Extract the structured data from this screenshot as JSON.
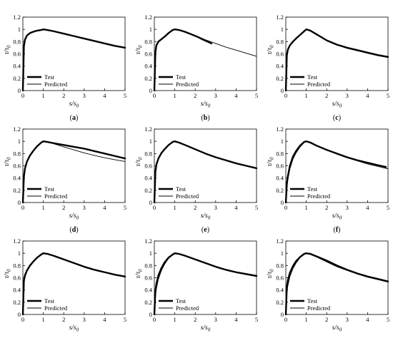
{
  "figure": {
    "panel_letters": [
      "(a)",
      "(b)",
      "(c)",
      "(d)",
      "(e)",
      "(f)",
      "(g)",
      "(h)",
      "(i)"
    ]
  },
  "chart_data": [
    {
      "type": "line",
      "panel": "(a)",
      "ylabel": "τ/τ0",
      "xlabel": "s/s0",
      "xlim": [
        0,
        5
      ],
      "ylim": [
        0,
        1.2
      ],
      "xticks": [
        "0",
        "1",
        "2",
        "3",
        "4",
        "5"
      ],
      "yticks": [
        "0",
        "0.2",
        "0.4",
        "0.6",
        "0.8",
        "1",
        "1.2"
      ],
      "legend": {
        "position": "bottom-left",
        "entries": [
          "Test",
          "Predicted"
        ]
      },
      "grid": false,
      "series": [
        {
          "name": "Test",
          "style": "thick",
          "x": [
            0,
            0.05,
            0.1,
            0.2,
            0.35,
            0.5,
            0.7,
            0.9,
            1.0,
            1.2,
            1.5,
            2.0,
            2.5,
            3.0,
            3.5,
            4.0,
            4.5,
            5.0
          ],
          "y": [
            0,
            0.72,
            0.83,
            0.9,
            0.94,
            0.96,
            0.98,
            0.99,
            1.0,
            0.99,
            0.97,
            0.93,
            0.89,
            0.85,
            0.81,
            0.77,
            0.73,
            0.7
          ]
        },
        {
          "name": "Predicted",
          "style": "thin",
          "x": [
            0,
            0.05,
            0.1,
            0.2,
            0.35,
            0.5,
            0.7,
            0.9,
            1.0,
            1.2,
            1.5,
            2.0,
            2.5,
            3.0,
            3.5,
            4.0,
            4.5,
            5.0
          ],
          "y": [
            0,
            0.7,
            0.81,
            0.89,
            0.93,
            0.955,
            0.975,
            0.99,
            1.0,
            0.99,
            0.97,
            0.93,
            0.89,
            0.85,
            0.81,
            0.77,
            0.73,
            0.7
          ]
        }
      ]
    },
    {
      "type": "line",
      "panel": "(b)",
      "ylabel": "τ/τ0",
      "xlabel": "s/s0",
      "xlim": [
        0,
        5
      ],
      "ylim": [
        0,
        1.2
      ],
      "xticks": [
        "0",
        "1",
        "2",
        "3",
        "4",
        "5"
      ],
      "yticks": [
        "0",
        "0.2",
        "0.4",
        "0.6",
        "0.8",
        "1",
        "1.2"
      ],
      "legend": {
        "position": "bottom-left",
        "entries": [
          "Test",
          "Predicted"
        ]
      },
      "grid": false,
      "series": [
        {
          "name": "Test",
          "style": "thick",
          "x": [
            0,
            0.05,
            0.1,
            0.2,
            0.35,
            0.5,
            0.7,
            0.9,
            1.0,
            1.2,
            1.5,
            1.8,
            2.1,
            2.4,
            2.8
          ],
          "y": [
            0,
            0.62,
            0.74,
            0.8,
            0.84,
            0.88,
            0.94,
            0.99,
            1.0,
            0.99,
            0.96,
            0.92,
            0.88,
            0.83,
            0.77
          ]
        },
        {
          "name": "Predicted",
          "style": "thin",
          "x": [
            0,
            0.05,
            0.1,
            0.2,
            0.35,
            0.5,
            0.7,
            0.9,
            1.0,
            1.2,
            1.5,
            2.0,
            2.5,
            3.0,
            3.5,
            4.0,
            4.5,
            5.0
          ],
          "y": [
            0,
            0.6,
            0.72,
            0.79,
            0.84,
            0.88,
            0.94,
            0.99,
            1.0,
            0.99,
            0.96,
            0.9,
            0.83,
            0.77,
            0.71,
            0.66,
            0.61,
            0.56
          ]
        }
      ]
    },
    {
      "type": "line",
      "panel": "(c)",
      "ylabel": "τ/τ0",
      "xlabel": "s/s0",
      "xlim": [
        0,
        5
      ],
      "ylim": [
        0,
        1.2
      ],
      "xticks": [
        "0",
        "1",
        "2",
        "3",
        "4",
        "5"
      ],
      "yticks": [
        "0",
        "0.2",
        "0.4",
        "0.6",
        "0.8",
        "1",
        "1.2"
      ],
      "legend": {
        "position": "bottom-left",
        "entries": [
          "Test",
          "Predicted"
        ]
      },
      "grid": false,
      "series": [
        {
          "name": "Test",
          "style": "thick",
          "x": [
            0,
            0.05,
            0.1,
            0.2,
            0.35,
            0.5,
            0.7,
            0.9,
            1.0,
            1.2,
            1.5,
            2.0,
            2.5,
            3.0,
            3.5,
            4.0,
            4.5,
            5.0
          ],
          "y": [
            0,
            0.58,
            0.67,
            0.74,
            0.8,
            0.85,
            0.91,
            0.97,
            1.0,
            0.98,
            0.92,
            0.82,
            0.75,
            0.7,
            0.66,
            0.62,
            0.58,
            0.55
          ]
        },
        {
          "name": "Predicted",
          "style": "thin",
          "x": [
            0,
            0.05,
            0.1,
            0.2,
            0.35,
            0.5,
            0.7,
            0.9,
            1.0,
            1.2,
            1.5,
            2.0,
            2.5,
            3.0,
            3.5,
            4.0,
            4.5,
            5.0
          ],
          "y": [
            0,
            0.55,
            0.65,
            0.73,
            0.8,
            0.85,
            0.92,
            0.98,
            1.0,
            0.97,
            0.91,
            0.82,
            0.75,
            0.69,
            0.65,
            0.61,
            0.57,
            0.54
          ]
        }
      ]
    },
    {
      "type": "line",
      "panel": "(d)",
      "ylabel": "τ/τ0",
      "xlabel": "s/s0",
      "xlim": [
        0,
        5
      ],
      "ylim": [
        0,
        1.2
      ],
      "xticks": [
        "0",
        "1",
        "2",
        "3",
        "4",
        "5"
      ],
      "yticks": [
        "0",
        "0.2",
        "0.4",
        "0.6",
        "0.8",
        "1",
        "1.2"
      ],
      "legend": {
        "position": "bottom-left",
        "entries": [
          "Test",
          "Predicted"
        ]
      },
      "grid": false,
      "series": [
        {
          "name": "Test",
          "style": "thick",
          "x": [
            0,
            0.05,
            0.1,
            0.2,
            0.35,
            0.5,
            0.7,
            0.9,
            1.0,
            1.2,
            1.5,
            2.0,
            2.5,
            3.0,
            3.5,
            4.0,
            4.5,
            5.0
          ],
          "y": [
            0,
            0.42,
            0.55,
            0.67,
            0.77,
            0.84,
            0.92,
            0.98,
            1.0,
            0.99,
            0.97,
            0.94,
            0.91,
            0.88,
            0.84,
            0.8,
            0.76,
            0.72
          ]
        },
        {
          "name": "Predicted",
          "style": "thin",
          "x": [
            0,
            0.05,
            0.1,
            0.2,
            0.35,
            0.5,
            0.7,
            0.9,
            1.0,
            1.2,
            1.5,
            2.0,
            2.5,
            3.0,
            3.5,
            4.0,
            4.5,
            5.0
          ],
          "y": [
            0,
            0.44,
            0.56,
            0.68,
            0.78,
            0.85,
            0.93,
            0.98,
            1.0,
            0.99,
            0.96,
            0.91,
            0.86,
            0.81,
            0.77,
            0.73,
            0.7,
            0.67
          ]
        }
      ]
    },
    {
      "type": "line",
      "panel": "(e)",
      "ylabel": "τ/τ0",
      "xlabel": "s/s0",
      "xlim": [
        0,
        5
      ],
      "ylim": [
        0,
        1.2
      ],
      "xticks": [
        "0",
        "1",
        "2",
        "3",
        "4",
        "5"
      ],
      "yticks": [
        "0",
        "0.2",
        "0.4",
        "0.6",
        "0.8",
        "1",
        "1.2"
      ],
      "legend": {
        "position": "bottom-left",
        "entries": [
          "Test",
          "Predicted"
        ]
      },
      "grid": false,
      "series": [
        {
          "name": "Test",
          "style": "thick",
          "x": [
            0,
            0.05,
            0.1,
            0.2,
            0.35,
            0.5,
            0.7,
            0.9,
            1.0,
            1.2,
            1.5,
            2.0,
            2.5,
            3.0,
            3.5,
            4.0,
            4.5,
            5.0
          ],
          "y": [
            0,
            0.5,
            0.62,
            0.72,
            0.81,
            0.87,
            0.94,
            0.99,
            1.0,
            0.98,
            0.94,
            0.87,
            0.8,
            0.74,
            0.69,
            0.64,
            0.6,
            0.56
          ]
        },
        {
          "name": "Predicted",
          "style": "thin",
          "x": [
            0,
            0.05,
            0.1,
            0.2,
            0.35,
            0.5,
            0.7,
            0.9,
            1.0,
            1.2,
            1.5,
            2.0,
            2.5,
            3.0,
            3.5,
            4.0,
            4.5,
            5.0
          ],
          "y": [
            0,
            0.48,
            0.6,
            0.71,
            0.8,
            0.87,
            0.94,
            0.99,
            1.0,
            0.98,
            0.94,
            0.87,
            0.8,
            0.74,
            0.69,
            0.64,
            0.6,
            0.56
          ]
        }
      ]
    },
    {
      "type": "line",
      "panel": "(f)",
      "ylabel": "τ/τ0",
      "xlabel": "s/s0",
      "xlim": [
        0,
        5
      ],
      "ylim": [
        0,
        1.2
      ],
      "xticks": [
        "0",
        "1",
        "2",
        "3",
        "4",
        "5"
      ],
      "yticks": [
        "0",
        "0.2",
        "0.4",
        "0.6",
        "0.8",
        "1",
        "1.2"
      ],
      "legend": {
        "position": "bottom-left",
        "entries": [
          "Test",
          "Predicted"
        ]
      },
      "grid": false,
      "series": [
        {
          "name": "Test",
          "style": "thick",
          "x": [
            0,
            0.05,
            0.1,
            0.2,
            0.35,
            0.5,
            0.7,
            0.9,
            1.0,
            1.2,
            1.5,
            2.0,
            2.5,
            3.0,
            3.5,
            4.0,
            4.5,
            4.9
          ],
          "y": [
            0,
            0.3,
            0.43,
            0.6,
            0.75,
            0.84,
            0.93,
            0.99,
            1.0,
            0.98,
            0.93,
            0.86,
            0.8,
            0.74,
            0.69,
            0.65,
            0.61,
            0.58
          ]
        },
        {
          "name": "Predicted",
          "style": "thin",
          "x": [
            0,
            0.05,
            0.1,
            0.2,
            0.35,
            0.5,
            0.7,
            0.9,
            1.0,
            1.2,
            1.5,
            2.0,
            2.5,
            3.0,
            3.5,
            4.0,
            4.5,
            5.0
          ],
          "y": [
            0,
            0.26,
            0.38,
            0.55,
            0.71,
            0.81,
            0.91,
            0.98,
            1.0,
            0.98,
            0.93,
            0.86,
            0.79,
            0.73,
            0.68,
            0.63,
            0.59,
            0.55
          ]
        }
      ]
    },
    {
      "type": "line",
      "panel": "(g)",
      "ylabel": "τ/τ0",
      "xlabel": "s/s0",
      "xlim": [
        0,
        5
      ],
      "ylim": [
        0,
        1.2
      ],
      "xticks": [
        "0",
        "1",
        "2",
        "3",
        "4",
        "5"
      ],
      "yticks": [
        "0",
        "0.2",
        "0.4",
        "0.6",
        "0.8",
        "1",
        "1.2"
      ],
      "legend": {
        "position": "bottom-left",
        "entries": [
          "Test",
          "Predicted"
        ]
      },
      "grid": false,
      "series": [
        {
          "name": "Test",
          "style": "thick",
          "x": [
            0,
            0.05,
            0.1,
            0.2,
            0.35,
            0.5,
            0.7,
            0.9,
            1.0,
            1.2,
            1.5,
            2.0,
            2.5,
            3.0,
            3.5,
            4.0,
            4.5,
            5.0
          ],
          "y": [
            0,
            0.55,
            0.64,
            0.72,
            0.8,
            0.86,
            0.93,
            0.98,
            1.0,
            0.99,
            0.96,
            0.9,
            0.84,
            0.78,
            0.73,
            0.69,
            0.65,
            0.62
          ]
        },
        {
          "name": "Predicted",
          "style": "thin",
          "x": [
            0,
            0.05,
            0.1,
            0.2,
            0.35,
            0.5,
            0.7,
            0.9,
            1.0,
            1.2,
            1.5,
            2.0,
            2.5,
            3.0,
            3.5,
            4.0,
            4.5,
            5.0
          ],
          "y": [
            0,
            0.5,
            0.6,
            0.7,
            0.79,
            0.86,
            0.93,
            0.98,
            1.0,
            0.99,
            0.96,
            0.9,
            0.84,
            0.78,
            0.73,
            0.69,
            0.65,
            0.61
          ]
        }
      ]
    },
    {
      "type": "line",
      "panel": "(h)",
      "ylabel": "τ/τ0",
      "xlabel": "s/s0",
      "xlim": [
        0,
        5
      ],
      "ylim": [
        0,
        1.2
      ],
      "xticks": [
        "0",
        "1",
        "2",
        "3",
        "4",
        "5"
      ],
      "yticks": [
        "0",
        "0.2",
        "0.4",
        "0.6",
        "0.8",
        "1",
        "1.2"
      ],
      "legend": {
        "position": "bottom-left",
        "entries": [
          "Test",
          "Predicted"
        ]
      },
      "grid": false,
      "series": [
        {
          "name": "Test",
          "style": "thick",
          "x": [
            0,
            0.05,
            0.1,
            0.2,
            0.35,
            0.5,
            0.7,
            0.9,
            1.0,
            1.2,
            1.5,
            2.0,
            2.5,
            3.0,
            3.5,
            4.0,
            4.5,
            5.0
          ],
          "y": [
            0,
            0.38,
            0.5,
            0.64,
            0.76,
            0.85,
            0.93,
            0.98,
            1.0,
            0.99,
            0.96,
            0.9,
            0.84,
            0.78,
            0.73,
            0.69,
            0.66,
            0.63
          ]
        },
        {
          "name": "Predicted",
          "style": "thin",
          "x": [
            0,
            0.05,
            0.1,
            0.2,
            0.35,
            0.5,
            0.7,
            0.9,
            1.0,
            1.2,
            1.5,
            2.0,
            2.5,
            3.0,
            3.5,
            4.0,
            4.5,
            5.0
          ],
          "y": [
            0,
            0.3,
            0.42,
            0.58,
            0.72,
            0.82,
            0.92,
            0.98,
            1.0,
            0.99,
            0.96,
            0.9,
            0.84,
            0.78,
            0.73,
            0.69,
            0.65,
            0.62
          ]
        }
      ]
    },
    {
      "type": "line",
      "panel": "(i)",
      "ylabel": "τ/τ0",
      "xlabel": "s/s0",
      "xlim": [
        0,
        5
      ],
      "ylim": [
        0,
        1.2
      ],
      "xticks": [
        "0",
        "1",
        "2",
        "3",
        "4",
        "5"
      ],
      "yticks": [
        "0",
        "0.2",
        "0.4",
        "0.6",
        "0.8",
        "1",
        "1.2"
      ],
      "legend": {
        "position": "bottom-left",
        "entries": [
          "Test",
          "Predicted"
        ]
      },
      "grid": false,
      "series": [
        {
          "name": "Test",
          "style": "thick",
          "x": [
            0,
            0.05,
            0.1,
            0.2,
            0.35,
            0.5,
            0.7,
            0.9,
            1.0,
            1.2,
            1.5,
            2.0,
            2.5,
            3.0,
            3.5,
            4.0,
            4.5,
            5.0
          ],
          "y": [
            0,
            0.45,
            0.56,
            0.68,
            0.79,
            0.87,
            0.94,
            0.99,
            1.0,
            0.99,
            0.95,
            0.88,
            0.8,
            0.73,
            0.67,
            0.62,
            0.58,
            0.54
          ]
        },
        {
          "name": "Predicted",
          "style": "thin",
          "x": [
            0,
            0.05,
            0.1,
            0.2,
            0.35,
            0.5,
            0.7,
            0.9,
            1.0,
            1.2,
            1.5,
            2.0,
            2.5,
            3.0,
            3.5,
            4.0,
            4.5,
            5.0
          ],
          "y": [
            0,
            0.35,
            0.47,
            0.62,
            0.75,
            0.84,
            0.93,
            0.98,
            1.0,
            0.98,
            0.94,
            0.86,
            0.78,
            0.72,
            0.66,
            0.61,
            0.57,
            0.53
          ]
        }
      ]
    }
  ]
}
